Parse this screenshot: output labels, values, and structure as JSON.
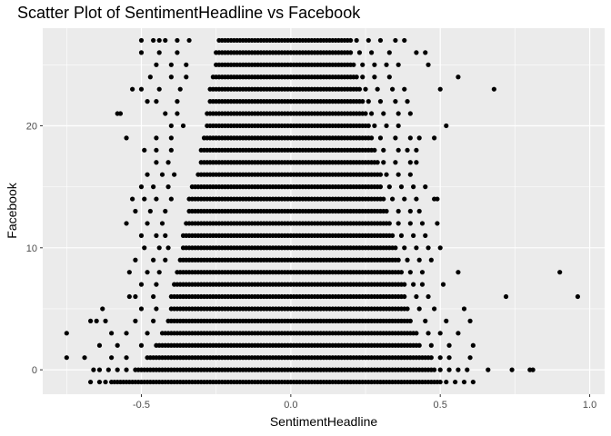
{
  "chart_data": {
    "type": "scatter",
    "title": "Scatter Plot of SentimentHeadline vs Facebook",
    "xlabel": "SentimentHeadline",
    "ylabel": "Facebook",
    "xlim": [
      -0.83,
      1.05
    ],
    "ylim": [
      -2,
      28
    ],
    "x_ticks": [
      -0.5,
      0.0,
      0.5,
      1.0
    ],
    "x_tick_labels": [
      "-0.5",
      "0.0",
      "0.5",
      "1.0"
    ],
    "y_ticks": [
      0,
      10,
      20
    ],
    "y_tick_labels": [
      "0",
      "10",
      "20"
    ],
    "grid": true,
    "legend": "none",
    "point_color": "#000000",
    "panel_background": "#ebebeb",
    "grid_color": "#ffffff",
    "bands": [
      {
        "y": -1,
        "dense": [
          -0.6,
          0.5
        ]
      },
      {
        "y": 0,
        "dense": [
          -0.52,
          0.48
        ]
      },
      {
        "y": 1,
        "dense": [
          -0.48,
          0.47
        ]
      },
      {
        "y": 2,
        "dense": [
          -0.45,
          0.43
        ]
      },
      {
        "y": 3,
        "dense": [
          -0.43,
          0.42
        ]
      },
      {
        "y": 4,
        "dense": [
          -0.41,
          0.4
        ]
      },
      {
        "y": 5,
        "dense": [
          -0.4,
          0.39
        ]
      },
      {
        "y": 6,
        "dense": [
          -0.4,
          0.38
        ]
      },
      {
        "y": 7,
        "dense": [
          -0.39,
          0.38
        ]
      },
      {
        "y": 8,
        "dense": [
          -0.38,
          0.37
        ]
      },
      {
        "y": 9,
        "dense": [
          -0.37,
          0.36
        ]
      },
      {
        "y": 10,
        "dense": [
          -0.36,
          0.35
        ]
      },
      {
        "y": 11,
        "dense": [
          -0.36,
          0.34
        ]
      },
      {
        "y": 12,
        "dense": [
          -0.35,
          0.33
        ]
      },
      {
        "y": 13,
        "dense": [
          -0.34,
          0.32
        ]
      },
      {
        "y": 14,
        "dense": [
          -0.34,
          0.31
        ]
      },
      {
        "y": 15,
        "dense": [
          -0.33,
          0.3
        ]
      },
      {
        "y": 16,
        "dense": [
          -0.31,
          0.3
        ]
      },
      {
        "y": 17,
        "dense": [
          -0.3,
          0.29
        ]
      },
      {
        "y": 18,
        "dense": [
          -0.3,
          0.28
        ]
      },
      {
        "y": 19,
        "dense": [
          -0.29,
          0.27
        ]
      },
      {
        "y": 20,
        "dense": [
          -0.28,
          0.26
        ]
      },
      {
        "y": 21,
        "dense": [
          -0.28,
          0.25
        ]
      },
      {
        "y": 22,
        "dense": [
          -0.27,
          0.24
        ]
      },
      {
        "y": 23,
        "dense": [
          -0.27,
          0.23
        ]
      },
      {
        "y": 24,
        "dense": [
          -0.26,
          0.22
        ]
      },
      {
        "y": 25,
        "dense": [
          -0.25,
          0.21
        ]
      },
      {
        "y": 26,
        "dense": [
          -0.25,
          0.2
        ]
      },
      {
        "y": 27,
        "dense": [
          -0.24,
          0.2
        ]
      }
    ],
    "points": [
      [
        -0.67,
        -1
      ],
      [
        -0.64,
        -1
      ],
      [
        -0.62,
        -1
      ],
      [
        0.52,
        -1
      ],
      [
        0.55,
        -1
      ],
      [
        0.58,
        -1
      ],
      [
        0.61,
        -1
      ],
      [
        -0.66,
        0
      ],
      [
        -0.64,
        0
      ],
      [
        -0.61,
        0
      ],
      [
        -0.58,
        0
      ],
      [
        -0.55,
        0
      ],
      [
        0.5,
        0
      ],
      [
        0.53,
        0
      ],
      [
        0.56,
        0
      ],
      [
        0.59,
        0
      ],
      [
        0.66,
        0
      ],
      [
        0.74,
        0
      ],
      [
        0.8,
        0
      ],
      [
        0.81,
        0
      ],
      [
        -0.75,
        1
      ],
      [
        -0.69,
        1
      ],
      [
        -0.6,
        1
      ],
      [
        -0.55,
        1
      ],
      [
        0.5,
        1
      ],
      [
        0.53,
        1
      ],
      [
        0.6,
        1
      ],
      [
        -0.64,
        2
      ],
      [
        -0.58,
        2
      ],
      [
        -0.5,
        2
      ],
      [
        0.47,
        2
      ],
      [
        0.53,
        2
      ],
      [
        0.61,
        2
      ],
      [
        -0.75,
        3
      ],
      [
        -0.6,
        3
      ],
      [
        -0.55,
        3
      ],
      [
        -0.48,
        3
      ],
      [
        0.46,
        3
      ],
      [
        0.5,
        3
      ],
      [
        0.56,
        3
      ],
      [
        -0.67,
        4
      ],
      [
        -0.65,
        4
      ],
      [
        -0.62,
        4
      ],
      [
        -0.52,
        4
      ],
      [
        -0.46,
        4
      ],
      [
        0.45,
        4
      ],
      [
        0.52,
        4
      ],
      [
        0.6,
        4
      ],
      [
        -0.63,
        5
      ],
      [
        -0.5,
        5
      ],
      [
        -0.45,
        5
      ],
      [
        0.43,
        5
      ],
      [
        0.48,
        5
      ],
      [
        0.58,
        5
      ],
      [
        -0.54,
        6
      ],
      [
        -0.52,
        6
      ],
      [
        -0.46,
        6
      ],
      [
        0.42,
        6
      ],
      [
        0.46,
        6
      ],
      [
        0.72,
        6
      ],
      [
        0.96,
        6
      ],
      [
        -0.5,
        7
      ],
      [
        -0.45,
        7
      ],
      [
        0.41,
        7
      ],
      [
        0.44,
        7
      ],
      [
        0.51,
        7
      ],
      [
        -0.54,
        8
      ],
      [
        -0.48,
        8
      ],
      [
        -0.44,
        8
      ],
      [
        0.4,
        8
      ],
      [
        0.44,
        8
      ],
      [
        0.56,
        8
      ],
      [
        0.9,
        8
      ],
      [
        -0.52,
        9
      ],
      [
        -0.46,
        9
      ],
      [
        -0.42,
        9
      ],
      [
        0.39,
        9
      ],
      [
        0.43,
        9
      ],
      [
        0.47,
        9
      ],
      [
        -0.49,
        10
      ],
      [
        -0.44,
        10
      ],
      [
        -0.41,
        10
      ],
      [
        0.38,
        10
      ],
      [
        0.42,
        10
      ],
      [
        0.46,
        10
      ],
      [
        0.5,
        10
      ],
      [
        -0.5,
        11
      ],
      [
        -0.45,
        11
      ],
      [
        -0.42,
        11
      ],
      [
        0.37,
        11
      ],
      [
        0.41,
        11
      ],
      [
        0.45,
        11
      ],
      [
        -0.55,
        12
      ],
      [
        -0.48,
        12
      ],
      [
        -0.43,
        12
      ],
      [
        0.36,
        12
      ],
      [
        0.4,
        12
      ],
      [
        0.44,
        12
      ],
      [
        0.49,
        12
      ],
      [
        -0.52,
        13
      ],
      [
        -0.47,
        13
      ],
      [
        -0.42,
        13
      ],
      [
        0.36,
        13
      ],
      [
        0.4,
        13
      ],
      [
        0.43,
        13
      ],
      [
        -0.53,
        14
      ],
      [
        -0.49,
        14
      ],
      [
        -0.45,
        14
      ],
      [
        -0.4,
        14
      ],
      [
        0.34,
        14
      ],
      [
        0.38,
        14
      ],
      [
        0.42,
        14
      ],
      [
        0.48,
        14
      ],
      [
        0.49,
        14
      ],
      [
        -0.5,
        15
      ],
      [
        -0.46,
        15
      ],
      [
        -0.41,
        15
      ],
      [
        0.33,
        15
      ],
      [
        0.37,
        15
      ],
      [
        0.41,
        15
      ],
      [
        0.45,
        15
      ],
      [
        -0.48,
        16
      ],
      [
        -0.43,
        16
      ],
      [
        -0.39,
        16
      ],
      [
        0.32,
        16
      ],
      [
        0.36,
        16
      ],
      [
        0.4,
        16
      ],
      [
        -0.45,
        17
      ],
      [
        -0.41,
        17
      ],
      [
        0.31,
        17
      ],
      [
        0.35,
        17
      ],
      [
        0.4,
        17
      ],
      [
        0.42,
        17
      ],
      [
        -0.49,
        18
      ],
      [
        -0.45,
        18
      ],
      [
        -0.4,
        18
      ],
      [
        0.31,
        18
      ],
      [
        0.36,
        18
      ],
      [
        0.39,
        18
      ],
      [
        0.42,
        18
      ],
      [
        -0.45,
        19
      ],
      [
        -0.4,
        19
      ],
      [
        -0.55,
        19
      ],
      [
        0.3,
        19
      ],
      [
        0.35,
        19
      ],
      [
        0.4,
        19
      ],
      [
        0.43,
        19
      ],
      [
        0.48,
        19
      ],
      [
        -0.4,
        20
      ],
      [
        -0.36,
        20
      ],
      [
        0.28,
        20
      ],
      [
        0.32,
        20
      ],
      [
        0.36,
        20
      ],
      [
        0.52,
        20
      ],
      [
        -0.58,
        21
      ],
      [
        -0.57,
        21
      ],
      [
        -0.42,
        21
      ],
      [
        -0.38,
        21
      ],
      [
        0.27,
        21
      ],
      [
        0.31,
        21
      ],
      [
        0.36,
        21
      ],
      [
        0.4,
        21
      ],
      [
        -0.48,
        22
      ],
      [
        -0.45,
        22
      ],
      [
        -0.38,
        22
      ],
      [
        0.26,
        22
      ],
      [
        0.3,
        22
      ],
      [
        0.35,
        22
      ],
      [
        0.39,
        22
      ],
      [
        -0.53,
        23
      ],
      [
        -0.5,
        23
      ],
      [
        -0.44,
        23
      ],
      [
        -0.37,
        23
      ],
      [
        0.25,
        23
      ],
      [
        0.29,
        23
      ],
      [
        0.34,
        23
      ],
      [
        0.38,
        23
      ],
      [
        0.5,
        23
      ],
      [
        0.68,
        23
      ],
      [
        -0.47,
        24
      ],
      [
        -0.4,
        24
      ],
      [
        -0.35,
        24
      ],
      [
        0.24,
        24
      ],
      [
        0.28,
        24
      ],
      [
        0.33,
        24
      ],
      [
        0.56,
        24
      ],
      [
        -0.45,
        25
      ],
      [
        -0.4,
        25
      ],
      [
        -0.35,
        25
      ],
      [
        0.24,
        25
      ],
      [
        0.28,
        25
      ],
      [
        0.32,
        25
      ],
      [
        0.36,
        25
      ],
      [
        0.46,
        25
      ],
      [
        -0.5,
        26
      ],
      [
        -0.44,
        26
      ],
      [
        -0.38,
        26
      ],
      [
        0.23,
        26
      ],
      [
        0.27,
        26
      ],
      [
        0.33,
        26
      ],
      [
        0.42,
        26
      ],
      [
        0.45,
        26
      ],
      [
        -0.5,
        27
      ],
      [
        -0.46,
        27
      ],
      [
        -0.44,
        27
      ],
      [
        -0.42,
        27
      ],
      [
        -0.38,
        27
      ],
      [
        -0.34,
        27
      ],
      [
        0.22,
        27
      ],
      [
        0.26,
        27
      ],
      [
        0.3,
        27
      ],
      [
        0.35,
        27
      ],
      [
        0.38,
        27
      ]
    ]
  }
}
